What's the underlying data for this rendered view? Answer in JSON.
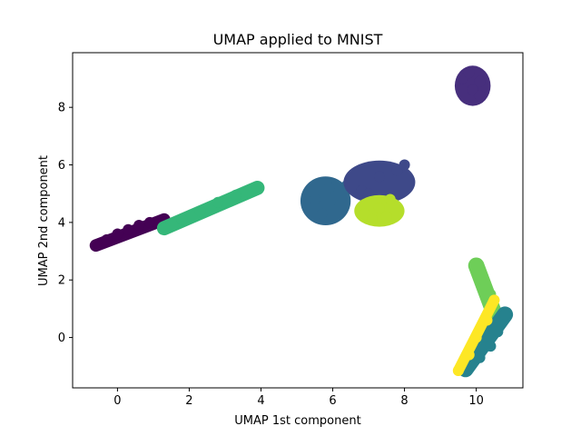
{
  "chart_data": {
    "type": "scatter",
    "title": "UMAP applied to MNIST",
    "xlabel": "UMAP 1st component",
    "ylabel": "UMAP 2nd component",
    "xlim": [
      -1.25,
      11.3
    ],
    "ylim": [
      -1.75,
      9.9
    ],
    "xticks": [
      0,
      2,
      4,
      6,
      8,
      10
    ],
    "yticks": [
      0,
      2,
      4,
      6,
      8
    ],
    "xtick_labels": [
      "0",
      "2",
      "4",
      "6",
      "8",
      "10"
    ],
    "ytick_labels": [
      "0",
      "2",
      "4",
      "6",
      "8"
    ],
    "grid": false,
    "legend": false,
    "series": [
      {
        "color": "#440154",
        "shape": "line",
        "from": [
          -0.6,
          3.2
        ],
        "to": [
          1.3,
          4.1
        ],
        "width": 0.35,
        "points": [
          [
            -0.6,
            3.2
          ],
          [
            -0.3,
            3.4
          ],
          [
            0.0,
            3.6
          ],
          [
            0.3,
            3.75
          ],
          [
            0.6,
            3.9
          ],
          [
            0.9,
            4.0
          ],
          [
            1.3,
            4.1
          ]
        ]
      },
      {
        "color": "#35b779",
        "shape": "line",
        "from": [
          1.3,
          3.8
        ],
        "to": [
          3.9,
          5.2
        ],
        "width": 0.4,
        "points": [
          [
            1.3,
            3.8
          ],
          [
            1.8,
            4.1
          ],
          [
            2.3,
            4.4
          ],
          [
            2.8,
            4.7
          ],
          [
            3.3,
            4.95
          ],
          [
            3.9,
            5.2
          ]
        ]
      },
      {
        "color": "#472f7d",
        "shape": "blob",
        "center": [
          9.9,
          8.75
        ],
        "rx": 0.5,
        "ry": 0.7,
        "points": [
          [
            9.6,
            9.0
          ],
          [
            9.9,
            8.6
          ],
          [
            10.1,
            8.4
          ],
          [
            9.8,
            9.2
          ],
          [
            10.1,
            8.9
          ]
        ]
      },
      {
        "color": "#30688e",
        "shape": "blob",
        "center": [
          5.8,
          4.75
        ],
        "rx": 0.7,
        "ry": 0.85,
        "points": [
          [
            5.5,
            4.8
          ],
          [
            5.9,
            5.2
          ],
          [
            6.2,
            4.6
          ],
          [
            5.7,
            4.3
          ],
          [
            6.4,
            5.3
          ]
        ]
      },
      {
        "color": "#3e4989",
        "shape": "blob",
        "center": [
          7.3,
          5.4
        ],
        "rx": 1.0,
        "ry": 0.75,
        "points": [
          [
            6.8,
            5.1
          ],
          [
            7.3,
            5.6
          ],
          [
            7.8,
            5.8
          ],
          [
            7.0,
            5.0
          ],
          [
            8.0,
            6.0
          ]
        ]
      },
      {
        "color": "#b5de2b",
        "shape": "blob",
        "center": [
          7.3,
          4.4
        ],
        "rx": 0.7,
        "ry": 0.55,
        "points": [
          [
            6.9,
            4.3
          ],
          [
            7.3,
            4.5
          ],
          [
            7.6,
            4.8
          ],
          [
            7.1,
            4.1
          ],
          [
            7.5,
            4.2
          ]
        ]
      },
      {
        "color": "#6ece58",
        "shape": "line",
        "from": [
          10.0,
          2.5
        ],
        "to": [
          10.6,
          0.5
        ],
        "width": 0.45,
        "points": [
          [
            10.0,
            2.5
          ],
          [
            10.2,
            2.0
          ],
          [
            10.4,
            1.5
          ],
          [
            10.5,
            1.0
          ],
          [
            10.6,
            0.5
          ]
        ]
      },
      {
        "color": "#26828e",
        "shape": "line",
        "from": [
          10.8,
          0.8
        ],
        "to": [
          9.7,
          -1.1
        ],
        "width": 0.45,
        "points": [
          [
            10.8,
            0.8
          ],
          [
            10.6,
            0.2
          ],
          [
            10.4,
            -0.3
          ],
          [
            10.1,
            -0.7
          ],
          [
            9.7,
            -1.1
          ]
        ]
      },
      {
        "color": "#fde725",
        "shape": "line",
        "from": [
          10.5,
          1.3
        ],
        "to": [
          9.5,
          -1.15
        ],
        "width": 0.3,
        "points": [
          [
            10.5,
            1.3
          ],
          [
            10.3,
            0.6
          ],
          [
            10.0,
            0.0
          ],
          [
            9.8,
            -0.6
          ],
          [
            9.5,
            -1.15
          ]
        ]
      }
    ]
  }
}
